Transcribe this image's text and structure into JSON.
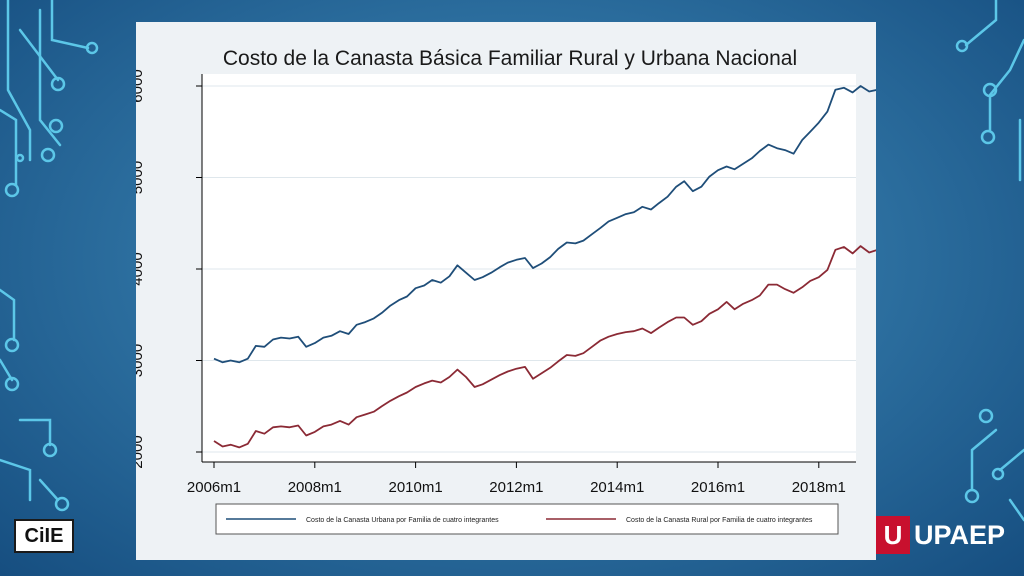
{
  "chart_data": {
    "type": "line",
    "title": "Costo de la Canasta Básica Familiar Rural y Urbana Nacional",
    "xlabel": "",
    "ylabel": "",
    "xlim": [
      2006.0,
      2018.5
    ],
    "ylim": [
      2000,
      6000
    ],
    "x_ticks": [
      2006,
      2008,
      2010,
      2012,
      2014,
      2016,
      2018
    ],
    "x_tick_labels": [
      "2006m1",
      "2008m1",
      "2010m1",
      "2012m1",
      "2014m1",
      "2016m1",
      "2018m1"
    ],
    "y_ticks": [
      2000,
      3000,
      4000,
      5000,
      6000
    ],
    "y_tick_labels": [
      "2000",
      "3000",
      "4000",
      "5000",
      "6000"
    ],
    "grid": true,
    "legend_position": "bottom",
    "series": [
      {
        "name": "Costo de la Canasta Urbana por Familia de cuatro integrantes",
        "color": "#1f4e79",
        "points": [
          [
            2006.0,
            3020
          ],
          [
            2006.17,
            2980
          ],
          [
            2006.33,
            3000
          ],
          [
            2006.5,
            2980
          ],
          [
            2006.67,
            3020
          ],
          [
            2006.83,
            3160
          ],
          [
            2007.0,
            3150
          ],
          [
            2007.17,
            3230
          ],
          [
            2007.33,
            3250
          ],
          [
            2007.5,
            3240
          ],
          [
            2007.67,
            3260
          ],
          [
            2007.83,
            3150
          ],
          [
            2008.0,
            3190
          ],
          [
            2008.17,
            3250
          ],
          [
            2008.33,
            3270
          ],
          [
            2008.5,
            3320
          ],
          [
            2008.67,
            3290
          ],
          [
            2008.83,
            3390
          ],
          [
            2009.0,
            3420
          ],
          [
            2009.17,
            3460
          ],
          [
            2009.33,
            3520
          ],
          [
            2009.5,
            3600
          ],
          [
            2009.67,
            3660
          ],
          [
            2009.83,
            3700
          ],
          [
            2010.0,
            3790
          ],
          [
            2010.17,
            3820
          ],
          [
            2010.33,
            3880
          ],
          [
            2010.5,
            3850
          ],
          [
            2010.67,
            3920
          ],
          [
            2010.83,
            4040
          ],
          [
            2011.0,
            3960
          ],
          [
            2011.17,
            3880
          ],
          [
            2011.33,
            3910
          ],
          [
            2011.5,
            3960
          ],
          [
            2011.67,
            4020
          ],
          [
            2011.83,
            4070
          ],
          [
            2012.0,
            4100
          ],
          [
            2012.17,
            4120
          ],
          [
            2012.33,
            4010
          ],
          [
            2012.5,
            4060
          ],
          [
            2012.67,
            4130
          ],
          [
            2012.83,
            4220
          ],
          [
            2013.0,
            4290
          ],
          [
            2013.17,
            4280
          ],
          [
            2013.33,
            4310
          ],
          [
            2013.5,
            4380
          ],
          [
            2013.67,
            4450
          ],
          [
            2013.83,
            4520
          ],
          [
            2014.0,
            4560
          ],
          [
            2014.17,
            4600
          ],
          [
            2014.33,
            4620
          ],
          [
            2014.5,
            4680
          ],
          [
            2014.67,
            4650
          ],
          [
            2014.83,
            4720
          ],
          [
            2015.0,
            4790
          ],
          [
            2015.17,
            4900
          ],
          [
            2015.33,
            4960
          ],
          [
            2015.5,
            4850
          ],
          [
            2015.67,
            4900
          ],
          [
            2015.83,
            5010
          ],
          [
            2016.0,
            5080
          ],
          [
            2016.17,
            5120
          ],
          [
            2016.33,
            5090
          ],
          [
            2016.5,
            5150
          ],
          [
            2016.67,
            5210
          ],
          [
            2016.83,
            5290
          ],
          [
            2017.0,
            5360
          ],
          [
            2017.17,
            5320
          ],
          [
            2017.33,
            5300
          ],
          [
            2017.5,
            5260
          ],
          [
            2017.67,
            5410
          ],
          [
            2017.83,
            5500
          ],
          [
            2018.0,
            5600
          ],
          [
            2018.17,
            5720
          ],
          [
            2018.33,
            5960
          ],
          [
            2018.5,
            5980
          ],
          [
            2018.67,
            5930
          ],
          [
            2018.83,
            6000
          ],
          [
            2019.0,
            5940
          ],
          [
            2019.17,
            5960
          ],
          [
            2019.33,
            5920
          ],
          [
            2019.5,
            6000
          ]
        ]
      },
      {
        "name": "Costo de la Canasta Rural por Familia de cuatro integrantes",
        "color": "#8b2a35",
        "points": [
          [
            2006.0,
            2120
          ],
          [
            2006.17,
            2060
          ],
          [
            2006.33,
            2080
          ],
          [
            2006.5,
            2050
          ],
          [
            2006.67,
            2090
          ],
          [
            2006.83,
            2230
          ],
          [
            2007.0,
            2200
          ],
          [
            2007.17,
            2270
          ],
          [
            2007.33,
            2280
          ],
          [
            2007.5,
            2270
          ],
          [
            2007.67,
            2290
          ],
          [
            2007.83,
            2180
          ],
          [
            2008.0,
            2220
          ],
          [
            2008.17,
            2280
          ],
          [
            2008.33,
            2300
          ],
          [
            2008.5,
            2340
          ],
          [
            2008.67,
            2300
          ],
          [
            2008.83,
            2380
          ],
          [
            2009.0,
            2410
          ],
          [
            2009.17,
            2440
          ],
          [
            2009.33,
            2500
          ],
          [
            2009.5,
            2560
          ],
          [
            2009.67,
            2610
          ],
          [
            2009.83,
            2650
          ],
          [
            2010.0,
            2710
          ],
          [
            2010.17,
            2750
          ],
          [
            2010.33,
            2780
          ],
          [
            2010.5,
            2760
          ],
          [
            2010.67,
            2820
          ],
          [
            2010.83,
            2900
          ],
          [
            2011.0,
            2820
          ],
          [
            2011.17,
            2710
          ],
          [
            2011.33,
            2740
          ],
          [
            2011.5,
            2790
          ],
          [
            2011.67,
            2840
          ],
          [
            2011.83,
            2880
          ],
          [
            2012.0,
            2910
          ],
          [
            2012.17,
            2930
          ],
          [
            2012.33,
            2800
          ],
          [
            2012.5,
            2860
          ],
          [
            2012.67,
            2920
          ],
          [
            2012.83,
            2990
          ],
          [
            2013.0,
            3060
          ],
          [
            2013.17,
            3050
          ],
          [
            2013.33,
            3080
          ],
          [
            2013.5,
            3150
          ],
          [
            2013.67,
            3220
          ],
          [
            2013.83,
            3260
          ],
          [
            2014.0,
            3290
          ],
          [
            2014.17,
            3310
          ],
          [
            2014.33,
            3320
          ],
          [
            2014.5,
            3350
          ],
          [
            2014.67,
            3300
          ],
          [
            2014.83,
            3360
          ],
          [
            2015.0,
            3420
          ],
          [
            2015.17,
            3470
          ],
          [
            2015.33,
            3470
          ],
          [
            2015.5,
            3390
          ],
          [
            2015.67,
            3430
          ],
          [
            2015.83,
            3510
          ],
          [
            2016.0,
            3560
          ],
          [
            2016.17,
            3640
          ],
          [
            2016.33,
            3560
          ],
          [
            2016.5,
            3620
          ],
          [
            2016.67,
            3660
          ],
          [
            2016.83,
            3710
          ],
          [
            2017.0,
            3830
          ],
          [
            2017.17,
            3830
          ],
          [
            2017.33,
            3780
          ],
          [
            2017.5,
            3740
          ],
          [
            2017.67,
            3800
          ],
          [
            2017.83,
            3870
          ],
          [
            2018.0,
            3910
          ],
          [
            2018.17,
            3990
          ],
          [
            2018.33,
            4210
          ],
          [
            2018.5,
            4240
          ],
          [
            2018.67,
            4170
          ],
          [
            2018.83,
            4250
          ],
          [
            2019.0,
            4180
          ],
          [
            2019.17,
            4210
          ],
          [
            2019.33,
            4160
          ],
          [
            2019.5,
            4200
          ]
        ]
      }
    ]
  },
  "logos": {
    "left_text": "CiIE",
    "right_mark": "U",
    "right_text": "UPAEP"
  }
}
